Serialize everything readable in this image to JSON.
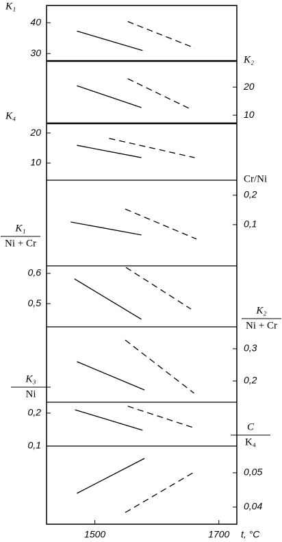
{
  "x_axis": {
    "xlim": [
      1422,
      1729
    ],
    "xticks": [
      1500,
      1700
    ],
    "xlabel": "t, °C"
  },
  "chart_data": [
    {
      "type": "line",
      "ylabel": "K₁",
      "axis_side": "left",
      "ylim": [
        27.6,
        45.6
      ],
      "yticks": [
        30,
        40
      ],
      "series": [
        {
          "style": "solid",
          "color": "#000",
          "x": [
            1471,
            1577
          ],
          "values": [
            37.3,
            31.0
          ]
        },
        {
          "style": "dashed",
          "color": "#000",
          "x": [
            1553,
            1661
          ],
          "values": [
            40.4,
            31.8
          ]
        }
      ]
    },
    {
      "type": "line",
      "ylabel": "K₂",
      "axis_side": "right",
      "ylim": [
        7.1,
        29.3
      ],
      "yticks": [
        10,
        20
      ],
      "series": [
        {
          "style": "solid",
          "color": "#000",
          "x": [
            1471,
            1575
          ],
          "values": [
            20.5,
            12.7
          ]
        },
        {
          "style": "dashed",
          "color": "#000",
          "x": [
            1553,
            1656
          ],
          "values": [
            23.0,
            12.0
          ]
        }
      ]
    },
    {
      "type": "line",
      "ylabel": "K₄",
      "axis_side": "left",
      "ylim": [
        4.3,
        23.2
      ],
      "yticks": [
        10,
        20
      ],
      "series": [
        {
          "style": "solid",
          "color": "#000",
          "x": [
            1471,
            1575
          ],
          "values": [
            15.9,
            11.8
          ]
        },
        {
          "style": "dashed",
          "color": "#000",
          "x": [
            1523,
            1661
          ],
          "values": [
            18.2,
            11.8
          ]
        }
      ]
    },
    {
      "type": "line",
      "ylabel": "Cr/Ni",
      "axis_side": "right",
      "ylim": [
        -0.04,
        0.251
      ],
      "yticks": [
        {
          "value": 0.1,
          "label": "0,1"
        },
        {
          "value": 0.2,
          "label": "0,2"
        }
      ],
      "series": [
        {
          "style": "solid",
          "color": "#000",
          "x": [
            1461,
            1575
          ],
          "values": [
            0.109,
            0.065
          ]
        },
        {
          "style": "dashed",
          "color": "#000",
          "x": [
            1549,
            1664
          ],
          "values": [
            0.153,
            0.051
          ]
        }
      ]
    },
    {
      "type": "line",
      "ylabel": {
        "numerator": "K₁",
        "denominator": "Ni + Cr"
      },
      "axis_side": "left",
      "ylim": [
        0.423,
        0.625
      ],
      "yticks": [
        {
          "value": 0.5,
          "label": "0,5"
        },
        {
          "value": 0.6,
          "label": "0,6"
        }
      ],
      "series": [
        {
          "style": "solid",
          "color": "#000",
          "x": [
            1467,
            1575
          ],
          "values": [
            0.582,
            0.448
          ]
        },
        {
          "style": "dashed",
          "color": "#000",
          "x": [
            1550,
            1655
          ],
          "values": [
            0.62,
            0.482
          ]
        }
      ]
    },
    {
      "type": "line",
      "ylabel": {
        "numerator": "K₂",
        "denominator": "Ni + Cr"
      },
      "axis_side": "right",
      "ylim": [
        0.134,
        0.368
      ],
      "yticks": [
        {
          "value": 0.2,
          "label": "0,2"
        },
        {
          "value": 0.3,
          "label": "0,3"
        }
      ],
      "series": [
        {
          "style": "solid",
          "color": "#000",
          "x": [
            1471,
            1580
          ],
          "values": [
            0.26,
            0.172
          ]
        },
        {
          "style": "dashed",
          "color": "#000",
          "x": [
            1549,
            1660
          ],
          "values": [
            0.327,
            0.162
          ]
        }
      ]
    },
    {
      "type": "line",
      "ylabel": {
        "numerator": "K₃",
        "denominator": "Ni"
      },
      "axis_side": "left",
      "ylim": [
        0.1,
        0.233
      ],
      "yticks": [
        {
          "value": 0.1,
          "label": "0,1"
        },
        {
          "value": 0.2,
          "label": "0,2"
        }
      ],
      "series": [
        {
          "style": "solid",
          "color": "#000",
          "x": [
            1468,
            1577
          ],
          "values": [
            0.21,
            0.148
          ]
        },
        {
          "style": "dashed",
          "color": "#000",
          "x": [
            1553,
            1662
          ],
          "values": [
            0.221,
            0.154
          ]
        }
      ]
    },
    {
      "type": "line",
      "ylabel": {
        "numerator": "C",
        "denominator": "K₄"
      },
      "axis_side": "right",
      "ylim": [
        0.035,
        0.0578
      ],
      "yticks": [
        {
          "value": 0.04,
          "label": "0,04"
        },
        {
          "value": 0.05,
          "label": "0,05"
        }
      ],
      "series": [
        {
          "style": "solid",
          "color": "#000",
          "x": [
            1471,
            1580
          ],
          "values": [
            0.044,
            0.0542
          ]
        },
        {
          "style": "dashed",
          "color": "#000",
          "x": [
            1549,
            1662
          ],
          "values": [
            0.0384,
            0.0504
          ]
        }
      ]
    }
  ]
}
